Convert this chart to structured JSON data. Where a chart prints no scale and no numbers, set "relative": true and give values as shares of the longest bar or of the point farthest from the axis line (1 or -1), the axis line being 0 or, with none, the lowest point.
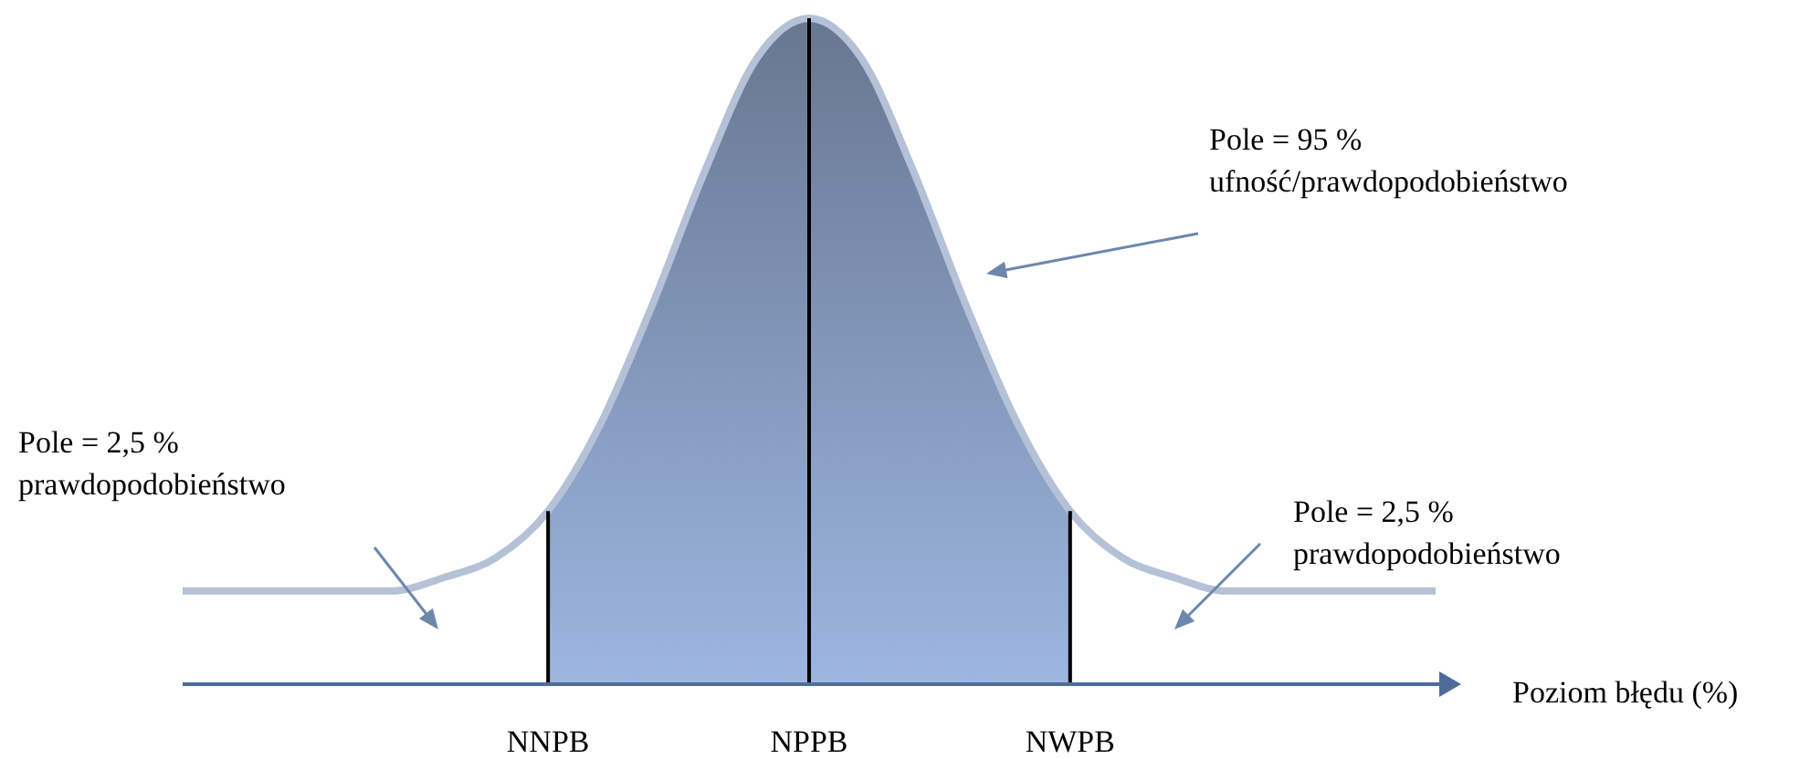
{
  "chart_data": {
    "type": "area",
    "relative": true,
    "xlabel": "Poziom błędu (%)",
    "categories": [
      null,
      null,
      null,
      null,
      null,
      null,
      null,
      "NNPB",
      null,
      null,
      null,
      null,
      "NPPB",
      null,
      null,
      null,
      null,
      "NWPB",
      null,
      null,
      null,
      null,
      null,
      null,
      null
    ],
    "series": [
      {
        "color": "#7f93b5",
        "values": [
          null,
          null,
          null,
          null,
          null,
          null,
          null,
          0.26,
          0.39,
          0.57,
          0.77,
          0.94,
          1.0,
          0.94,
          0.77,
          0.57,
          0.39,
          0.26,
          null,
          null,
          null,
          null,
          null,
          null,
          null
        ]
      },
      {
        "type": "line",
        "color": "#b4c1d6",
        "values": [
          0.14,
          0.14,
          0.14,
          0.14,
          0.14,
          0.16,
          0.19,
          0.26,
          0.39,
          0.57,
          0.77,
          0.94,
          1.0,
          0.94,
          0.77,
          0.57,
          0.39,
          0.26,
          0.19,
          0.16,
          0.14,
          0.14,
          0.14,
          0.14,
          0.14
        ]
      }
    ],
    "ref_lines": [
      {
        "axis": "x",
        "value": "NNPB",
        "color": "#000000"
      },
      {
        "axis": "x",
        "value": "NPPB",
        "color": "#000000"
      },
      {
        "axis": "x",
        "value": "NWPB",
        "color": "#000000"
      }
    ],
    "annotations": [
      "Pole = 2,5 %\nprawdopodobieństwo",
      "Pole = 95 %\nufność/prawdopodobieństwo",
      "Pole = 2,5 %\nprawdopodobieństwo"
    ]
  }
}
